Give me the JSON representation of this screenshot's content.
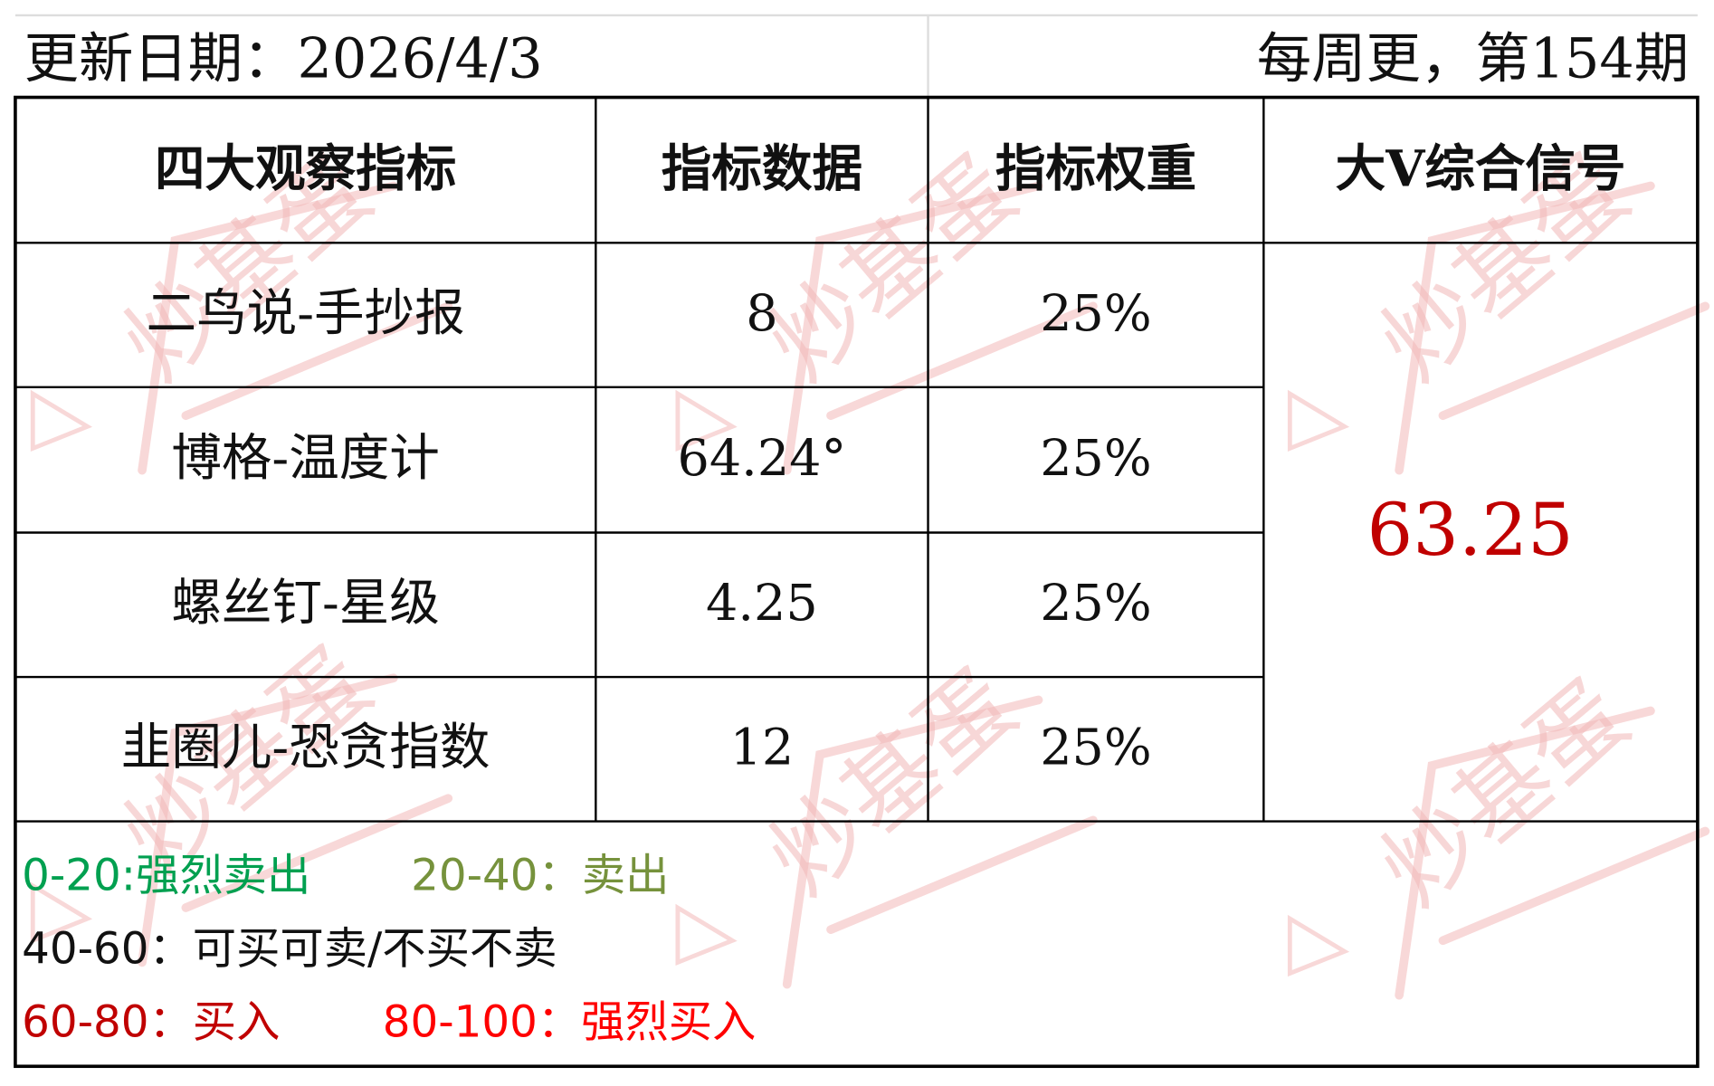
{
  "header": {
    "date": "更新日期：2026/4/3",
    "issue": "每周更，第154期"
  },
  "table": {
    "columns": [
      "四大观察指标",
      "指标数据",
      "指标权重",
      "大V综合信号"
    ],
    "rows": [
      [
        "二鸟说-手抄报",
        "8",
        "25%"
      ],
      [
        "博格-温度计",
        "64.24°",
        "25%"
      ],
      [
        "螺丝钉-星级",
        "4.25",
        "25%"
      ],
      [
        "韭圈儿-恐贪指数",
        "12",
        "25%"
      ]
    ],
    "signal": "63.25"
  },
  "legend": [
    [
      "0-20:强烈卖出",
      "20-40：卖出"
    ],
    [
      "40-60：可买可卖/不买不卖"
    ],
    [
      "60-80：买入",
      "80-100：强烈买入"
    ]
  ],
  "watermark": "炒基蛋"
}
